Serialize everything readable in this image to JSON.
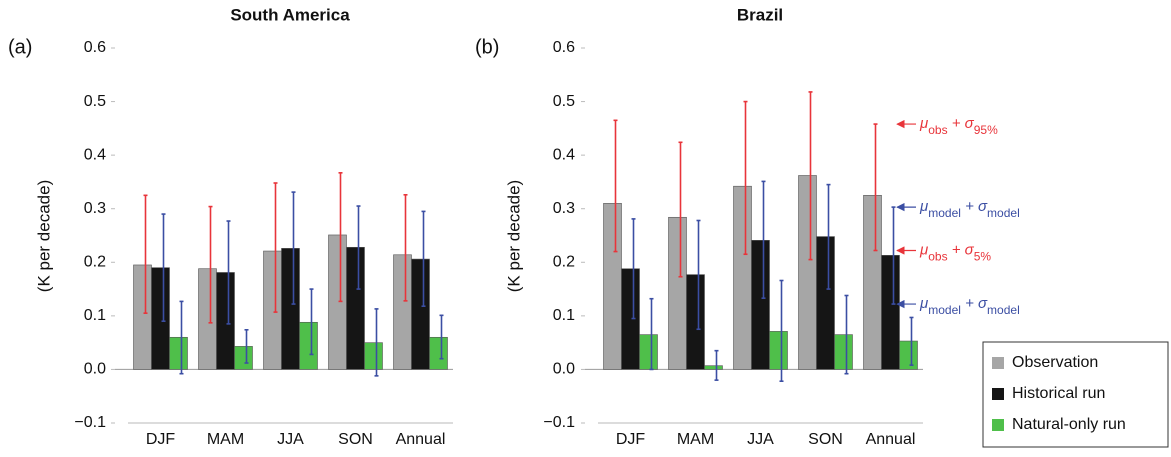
{
  "chart_data": [
    {
      "type": "bar",
      "title": "South America",
      "panel_label": "(a)",
      "ylabel": "(K per decade)",
      "categories": [
        "DJF",
        "MAM",
        "JJA",
        "SON",
        "Annual"
      ],
      "ylim": [
        -0.1,
        0.6
      ],
      "yticks": [
        {
          "value": -0.1,
          "label": "−0.1"
        },
        {
          "value": 0,
          "label": "0.0"
        },
        0.1,
        0.2,
        0.3,
        0.4,
        0.5,
        0.6
      ],
      "series": [
        {
          "color": "#a6a6a6",
          "error_color": "#e8343a",
          "values": [
            0.195,
            0.188,
            0.221,
            0.251,
            0.214
          ],
          "lower": [
            0.105,
            0.087,
            0.107,
            0.127,
            0.128
          ],
          "upper": [
            0.325,
            0.304,
            0.348,
            0.367,
            0.326
          ]
        },
        {
          "color": "#151515",
          "error_color": "#3b4ea3",
          "values": [
            0.19,
            0.181,
            0.226,
            0.228,
            0.206
          ],
          "lower": [
            0.09,
            0.085,
            0.122,
            0.15,
            0.118
          ],
          "upper": [
            0.29,
            0.277,
            0.331,
            0.305,
            0.295
          ]
        },
        {
          "color": "#4fbf4a",
          "error_color": "#3b4ea3",
          "values": [
            0.06,
            0.043,
            0.088,
            0.05,
            0.06
          ],
          "lower": [
            -0.008,
            0.012,
            0.028,
            -0.012,
            0.02
          ],
          "upper": [
            0.127,
            0.074,
            0.15,
            0.113,
            0.101
          ]
        }
      ]
    },
    {
      "type": "bar",
      "title": "Brazil",
      "panel_label": "(b)",
      "ylabel": "(K per decade)",
      "categories": [
        "DJF",
        "MAM",
        "JJA",
        "SON",
        "Annual"
      ],
      "ylim": [
        -0.1,
        0.6
      ],
      "yticks": [
        {
          "value": -0.1,
          "label": "−0.1"
        },
        {
          "value": 0,
          "label": "0.0"
        },
        0.1,
        0.2,
        0.3,
        0.4,
        0.5,
        0.6
      ],
      "legend": "lower right",
      "series": [
        {
          "name": "Observation",
          "color": "#a6a6a6",
          "error_color": "#e8343a",
          "values": [
            0.31,
            0.284,
            0.342,
            0.362,
            0.325
          ],
          "lower": [
            0.22,
            0.173,
            0.215,
            0.205,
            0.222
          ],
          "upper": [
            0.465,
            0.424,
            0.5,
            0.518,
            0.458
          ]
        },
        {
          "name": "Historical run",
          "color": "#151515",
          "error_color": "#3b4ea3",
          "values": [
            0.188,
            0.177,
            0.241,
            0.248,
            0.213
          ],
          "lower": [
            0.095,
            0.075,
            0.133,
            0.15,
            0.122
          ],
          "upper": [
            0.281,
            0.278,
            0.351,
            0.345,
            0.303
          ]
        },
        {
          "name": "Natural-only run",
          "color": "#4fbf4a",
          "error_color": "#3b4ea3",
          "values": [
            0.065,
            0.007,
            0.071,
            0.065,
            0.053
          ],
          "lower": [
            0,
            -0.02,
            -0.022,
            -0.008,
            0.008
          ],
          "upper": [
            0.132,
            0.035,
            0.166,
            0.138,
            0.097
          ]
        }
      ],
      "annotations": [
        {
          "parts": [
            "μ",
            "obs",
            " + σ",
            "95%"
          ],
          "color": "#e8343a"
        },
        {
          "parts": [
            "μ",
            "model",
            " + σ",
            "model"
          ],
          "color": "#3b4ea3"
        },
        {
          "parts": [
            "μ",
            "obs",
            " + σ",
            "5%"
          ],
          "color": "#e8343a"
        },
        {
          "parts": [
            "μ",
            "model",
            " + σ",
            "model"
          ],
          "color": "#3b4ea3"
        }
      ]
    }
  ]
}
